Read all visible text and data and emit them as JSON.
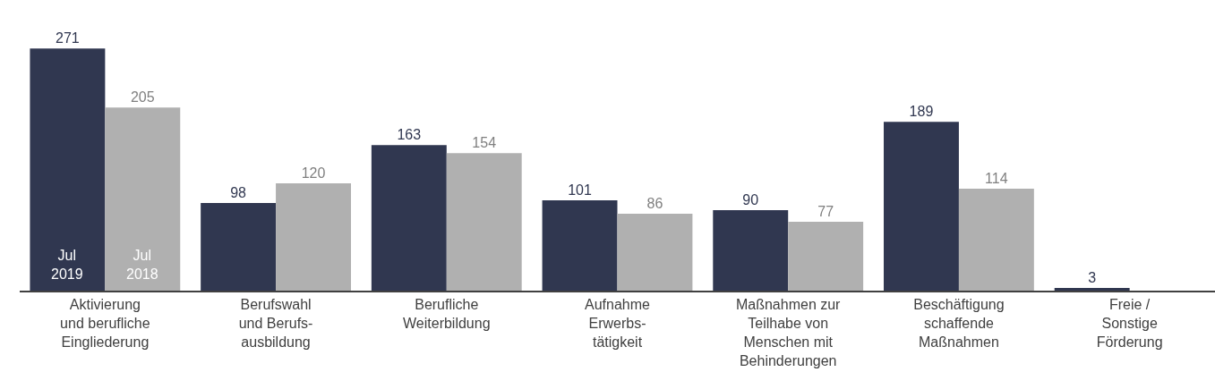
{
  "chart_data": {
    "type": "bar",
    "categories": [
      "Aktivierung\nund berufliche\nEingliederung",
      "Berufswahl\nund Berufs-\nausbildung",
      "Berufliche\nWeiterbildung",
      "Aufnahme\nErwerbs-\ntätigkeit",
      "Maßnahmen zur\nTeilhabe von\nMenschen mit\nBehinderungen",
      "Beschäftigung\nschaffende\nMaßnahmen",
      "Freie /\nSonstige\nFörderung"
    ],
    "series": [
      {
        "name": "Jul\n2019",
        "color": "#303750",
        "values": [
          271,
          98,
          163,
          101,
          90,
          189,
          3
        ]
      },
      {
        "name": "Jul\n2018",
        "color": "#b0b0b0",
        "values": [
          205,
          120,
          154,
          86,
          77,
          114,
          null
        ]
      }
    ],
    "data_labels": true,
    "legend": false
  }
}
